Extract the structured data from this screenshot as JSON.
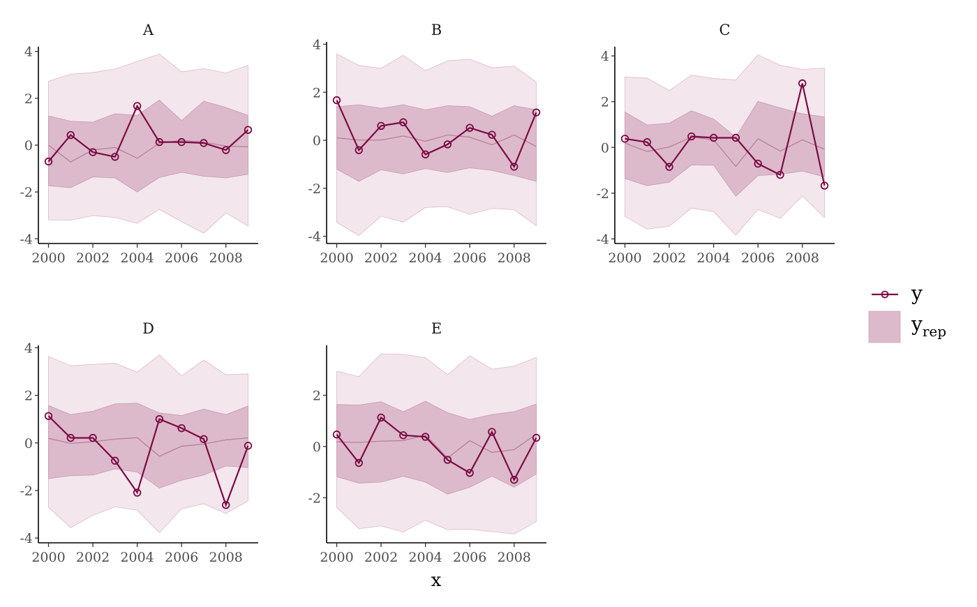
{
  "chart_data": {
    "type": "line",
    "xlabel": "x",
    "x": [
      2000,
      2001,
      2002,
      2003,
      2004,
      2005,
      2006,
      2007,
      2008,
      2009
    ],
    "x_ticks": [
      2000,
      2002,
      2004,
      2006,
      2008
    ],
    "x_tick_labels": [
      "2000",
      "2002",
      "2004",
      "2006",
      "2008"
    ],
    "legend": {
      "position": "right",
      "entries": [
        {
          "label": "y",
          "sub": ""
        },
        {
          "label": "y",
          "sub": "rep"
        }
      ]
    },
    "colors": {
      "y": "#7b0a44",
      "median": "#b97f98",
      "inner": "#dcbacb",
      "outer": "#f3e6ed",
      "outer_edge": "#dcbacb",
      "inner_edge": "#c89ab0"
    },
    "panels": [
      {
        "title": "A",
        "ylim": [
          -4.2,
          4.2
        ],
        "y_ticks": [
          4,
          2,
          0,
          -2,
          -4
        ],
        "y_tick_labels": [
          "4",
          "2",
          "0",
          "-2",
          "-4"
        ],
        "y": [
          -0.7,
          0.43,
          -0.3,
          -0.5,
          1.67,
          0.13,
          0.13,
          0.09,
          -0.21,
          0.65
        ],
        "outer_upper": [
          2.73,
          3.03,
          3.1,
          3.25,
          3.57,
          3.89,
          3.13,
          3.27,
          3.08,
          3.4
        ],
        "inner_upper": [
          1.25,
          1.02,
          0.98,
          1.34,
          1.27,
          1.92,
          1.05,
          1.88,
          1.61,
          1.27
        ],
        "median": [
          0,
          -0.72,
          -0.2,
          -0.1,
          -0.56,
          0.08,
          0.2,
          0.13,
          -0.04,
          -0.07
        ],
        "inner_lower": [
          -1.73,
          -1.82,
          -1.36,
          -1.4,
          -2.0,
          -1.38,
          -1.16,
          -1.33,
          -1.4,
          -1.24
        ],
        "outer_lower": [
          -3.19,
          -3.21,
          -3.01,
          -3.09,
          -3.34,
          -2.74,
          -3.27,
          -3.76,
          -2.89,
          -3.46
        ]
      },
      {
        "title": "B",
        "ylim": [
          -4.3,
          4.1
        ],
        "y_ticks": [
          4,
          2,
          0,
          -2,
          -4
        ],
        "y_tick_labels": [
          "4",
          "2",
          "0",
          "-2",
          "-4"
        ],
        "y": [
          1.67,
          -0.41,
          0.6,
          0.75,
          -0.59,
          -0.17,
          0.52,
          0.23,
          -1.1,
          1.16
        ],
        "outer_upper": [
          3.6,
          3.12,
          3.0,
          3.54,
          2.9,
          3.31,
          3.38,
          3.02,
          3.09,
          2.43
        ],
        "inner_upper": [
          1.4,
          1.48,
          1.33,
          1.48,
          1.27,
          1.44,
          1.4,
          1.0,
          1.44,
          1.27
        ],
        "median": [
          0.1,
          0.01,
          0.01,
          0.18,
          -0.04,
          0.22,
          0.13,
          -0.19,
          0.22,
          -0.26
        ],
        "inner_lower": [
          -1.2,
          -1.71,
          -1.23,
          -1.4,
          -1.18,
          -1.34,
          -1.15,
          -1.25,
          -1.47,
          -1.71
        ],
        "outer_lower": [
          -3.42,
          -3.97,
          -3.16,
          -3.41,
          -2.8,
          -2.77,
          -3.09,
          -2.84,
          -2.89,
          -3.56
        ]
      },
      {
        "title": "C",
        "ylim": [
          -4.2,
          4.4
        ],
        "y_ticks": [
          4,
          2,
          0,
          -2,
          -4
        ],
        "y_tick_labels": [
          "4",
          "2",
          "0",
          "-2",
          "-4"
        ],
        "y": [
          0.38,
          0.23,
          -0.85,
          0.48,
          0.42,
          0.42,
          -0.71,
          -1.2,
          2.8,
          -1.67
        ],
        "outer_upper": [
          3.08,
          3.03,
          2.49,
          3.16,
          3.01,
          2.95,
          4.05,
          3.59,
          3.41,
          3.47
        ],
        "inner_upper": [
          1.55,
          0.98,
          1.06,
          1.6,
          1.24,
          0.45,
          2.01,
          1.73,
          1.47,
          1.33
        ],
        "median": [
          0.19,
          -0.18,
          0.02,
          0.45,
          0.33,
          -0.83,
          0.38,
          -0.16,
          0.33,
          -0.08
        ],
        "inner_lower": [
          -1.36,
          -1.67,
          -1.52,
          -0.77,
          -0.78,
          -2.14,
          -1.23,
          -1.18,
          -1.03,
          -1.29
        ],
        "outer_lower": [
          -3.02,
          -3.57,
          -3.45,
          -2.65,
          -2.81,
          -3.84,
          -2.71,
          -3.1,
          -2.12,
          -3.06
        ]
      },
      {
        "title": "D",
        "ylim": [
          -4.2,
          4.1
        ],
        "y_ticks": [
          4,
          2,
          0,
          -2,
          -4
        ],
        "y_tick_labels": [
          "4",
          "2",
          "0",
          "-2",
          "-4"
        ],
        "y": [
          1.13,
          0.21,
          0.21,
          -0.75,
          -2.09,
          1.0,
          0.62,
          0.16,
          -2.61,
          -0.12
        ],
        "outer_upper": [
          3.64,
          3.24,
          3.3,
          3.35,
          2.97,
          3.7,
          2.82,
          3.48,
          2.87,
          2.9
        ],
        "inner_upper": [
          1.57,
          1.19,
          1.33,
          1.64,
          1.67,
          1.26,
          1.15,
          1.42,
          1.19,
          1.55
        ],
        "median": [
          0.19,
          -0.02,
          0.05,
          0.16,
          0.22,
          -0.56,
          -0.14,
          -0.05,
          0.13,
          0.21
        ],
        "inner_lower": [
          -1.5,
          -1.38,
          -1.35,
          -1.09,
          -1.23,
          -1.9,
          -1.57,
          -1.35,
          -0.97,
          -1.04
        ],
        "outer_lower": [
          -2.71,
          -3.57,
          -3.04,
          -2.69,
          -2.83,
          -3.78,
          -2.77,
          -2.56,
          -2.97,
          -2.44
        ]
      },
      {
        "title": "E",
        "ylim": [
          -3.76,
          3.95
        ],
        "y_ticks": [
          2,
          0,
          -2
        ],
        "y_tick_labels": [
          "2",
          "0",
          "-2"
        ],
        "y": [
          0.47,
          -0.64,
          1.13,
          0.44,
          0.38,
          -0.52,
          -1.03,
          0.57,
          -1.3,
          0.34
        ],
        "outer_upper": [
          2.94,
          2.73,
          3.62,
          3.6,
          3.47,
          2.8,
          3.55,
          3.02,
          3.14,
          3.48
        ],
        "inner_upper": [
          1.64,
          1.62,
          1.75,
          1.36,
          1.77,
          1.32,
          1.06,
          1.25,
          1.36,
          1.66
        ],
        "median": [
          0.18,
          0.16,
          0.21,
          0.23,
          0.45,
          -0.45,
          0.23,
          -0.23,
          -0.12,
          0.48
        ],
        "inner_lower": [
          -1.18,
          -1.43,
          -1.39,
          -1.16,
          -1.39,
          -1.86,
          -1.59,
          -1.16,
          -1.59,
          -1.07
        ],
        "outer_lower": [
          -2.38,
          -3.21,
          -3.1,
          -3.34,
          -2.88,
          -3.25,
          -3.23,
          -3.32,
          -3.42,
          -2.93
        ]
      }
    ]
  }
}
